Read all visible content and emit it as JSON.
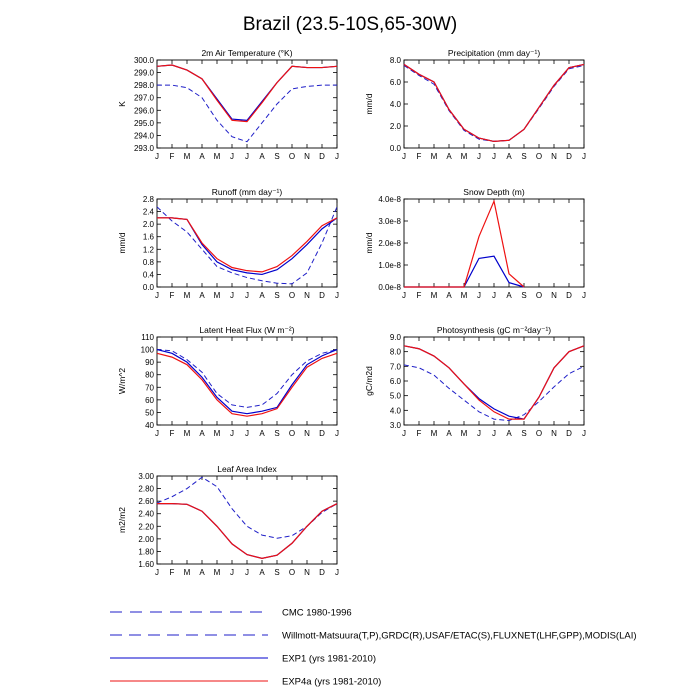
{
  "title": "Brazil (23.5-10S,65-30W)",
  "months": [
    "J",
    "F",
    "M",
    "A",
    "M",
    "J",
    "J",
    "A",
    "S",
    "O",
    "N",
    "D",
    "J"
  ],
  "colors": {
    "cmc": "#1f1fc8",
    "obs": "#1f1fc8",
    "exp1": "#0000cc",
    "exp4a": "#ee1111"
  },
  "legend": [
    {
      "key": "cmc",
      "label": "CMC 1980-1996",
      "style": "dash-long"
    },
    {
      "key": "obs",
      "label": "Willmott-Matsuura(T,P),GRDC(R),USAF/ETAC(S),FLUXNET(LHF,GPP),MODIS(LAI)",
      "style": "dash"
    },
    {
      "key": "exp1",
      "label": "EXP1 (yrs 1981-2010)",
      "style": "solid"
    },
    {
      "key": "exp4a",
      "label": "EXP4a (yrs 1981-2010)",
      "style": "solid"
    }
  ],
  "chart_data": [
    {
      "type": "line",
      "id": "air-temp",
      "title": "2m Air Temperature (°K)",
      "ylabel": "K",
      "ylim": [
        293,
        300
      ],
      "yticks": [
        "293.0",
        "294.0",
        "295.0",
        "296.0",
        "297.0",
        "298.0",
        "299.0",
        "300.0"
      ],
      "series": [
        {
          "name": "Willmott-Matsuura",
          "key": "obs",
          "values": [
            298.0,
            298.0,
            297.8,
            297.0,
            295.2,
            293.9,
            293.5,
            295.0,
            296.5,
            297.7,
            297.9,
            298.0,
            298.0
          ]
        },
        {
          "name": "EXP1",
          "key": "exp1",
          "values": [
            299.5,
            299.6,
            299.2,
            298.5,
            296.9,
            295.3,
            295.2,
            296.7,
            298.2,
            299.5,
            299.4,
            299.4,
            299.5
          ]
        },
        {
          "name": "EXP4a",
          "key": "exp4a",
          "values": [
            299.5,
            299.6,
            299.2,
            298.5,
            296.8,
            295.2,
            295.1,
            296.6,
            298.2,
            299.5,
            299.4,
            299.4,
            299.5
          ]
        }
      ]
    },
    {
      "type": "line",
      "id": "precipitation",
      "title": "Precipitation (mm day⁻¹)",
      "ylabel": "mm/d",
      "ylim": [
        0,
        8
      ],
      "yticks": [
        "0.0",
        "2.0",
        "4.0",
        "6.0",
        "8.0"
      ],
      "series": [
        {
          "name": "Willmott-Matsuura",
          "key": "obs",
          "values": [
            7.5,
            6.6,
            5.8,
            3.4,
            1.6,
            0.8,
            0.6,
            0.7,
            1.7,
            3.6,
            5.6,
            7.2,
            7.5
          ]
        },
        {
          "name": "EXP1",
          "key": "exp1",
          "values": [
            7.6,
            6.7,
            6.0,
            3.5,
            1.7,
            0.9,
            0.6,
            0.7,
            1.7,
            3.7,
            5.7,
            7.3,
            7.6
          ]
        },
        {
          "name": "EXP4a",
          "key": "exp4a",
          "values": [
            7.6,
            6.7,
            6.0,
            3.5,
            1.7,
            0.9,
            0.6,
            0.7,
            1.7,
            3.7,
            5.7,
            7.3,
            7.6
          ]
        }
      ]
    },
    {
      "type": "line",
      "id": "runoff",
      "title": "Runoff (mm day⁻¹)",
      "ylabel": "mm/d",
      "ylim": [
        0,
        2.8
      ],
      "yticks": [
        "0.0",
        "0.4",
        "0.8",
        "1.2",
        "1.6",
        "2.0",
        "2.4",
        "2.8"
      ],
      "series": [
        {
          "name": "GRDC",
          "key": "obs",
          "values": [
            2.55,
            2.1,
            1.75,
            1.2,
            0.65,
            0.45,
            0.3,
            0.2,
            0.12,
            0.1,
            0.45,
            1.4,
            2.55
          ]
        },
        {
          "name": "EXP1",
          "key": "exp1",
          "values": [
            2.2,
            2.2,
            2.15,
            1.35,
            0.8,
            0.55,
            0.45,
            0.4,
            0.55,
            0.9,
            1.35,
            1.85,
            2.2
          ]
        },
        {
          "name": "EXP4a",
          "key": "exp4a",
          "values": [
            2.2,
            2.2,
            2.15,
            1.4,
            0.9,
            0.62,
            0.52,
            0.48,
            0.65,
            1.0,
            1.45,
            1.95,
            2.2
          ]
        }
      ]
    },
    {
      "type": "line",
      "id": "snow-depth",
      "title": "Snow Depth (m)",
      "ylabel": "mm/d",
      "ylim": [
        0,
        4e-08
      ],
      "yticks": [
        "0.0e-8",
        "1.0e-8",
        "2.0e-8",
        "3.0e-8",
        "4.0e-8"
      ],
      "series": [
        {
          "name": "EXP1",
          "key": "exp1",
          "values": [
            0,
            0,
            0,
            0,
            0,
            1.3e-08,
            1.4e-08,
            2e-09,
            0,
            null,
            null,
            null,
            null
          ]
        },
        {
          "name": "EXP4a",
          "key": "exp4a",
          "values": [
            0,
            0,
            0,
            0,
            0,
            2.3e-08,
            3.9e-08,
            6e-09,
            0,
            null,
            null,
            null,
            null
          ]
        }
      ]
    },
    {
      "type": "line",
      "id": "latent-heat",
      "title": "Latent Heat Flux (W m⁻²)",
      "ylabel": "W/m^2",
      "ylim": [
        40,
        110
      ],
      "yticks": [
        "40",
        "50",
        "60",
        "70",
        "80",
        "90",
        "100",
        "110"
      ],
      "series": [
        {
          "name": "FLUXNET",
          "key": "obs",
          "values": [
            100,
            99,
            92,
            82,
            65,
            56,
            54,
            56,
            65,
            80,
            91,
            97,
            100
          ]
        },
        {
          "name": "EXP1",
          "key": "exp1",
          "values": [
            100,
            97,
            90,
            78,
            62,
            51,
            49,
            51,
            54,
            72,
            88,
            95,
            100
          ]
        },
        {
          "name": "EXP4a",
          "key": "exp4a",
          "values": [
            97,
            94,
            88,
            76,
            60,
            49,
            47,
            49,
            53,
            70,
            86,
            93,
            97
          ]
        }
      ]
    },
    {
      "type": "line",
      "id": "photosynthesis",
      "title": "Photosynthesis (gC m⁻²day⁻¹)",
      "ylabel": "gC/m2d",
      "ylim": [
        3,
        9
      ],
      "yticks": [
        "3.0",
        "4.0",
        "5.0",
        "6.0",
        "7.0",
        "8.0",
        "9.0"
      ],
      "series": [
        {
          "name": "FLUXNET",
          "key": "obs",
          "values": [
            7.1,
            6.9,
            6.4,
            5.5,
            4.7,
            3.9,
            3.4,
            3.3,
            3.7,
            4.6,
            5.6,
            6.5,
            7.0
          ]
        },
        {
          "name": "EXP1",
          "key": "exp1",
          "values": [
            8.4,
            8.2,
            7.7,
            6.9,
            5.8,
            4.8,
            4.1,
            3.6,
            3.4,
            4.9,
            6.9,
            8.0,
            8.4
          ]
        },
        {
          "name": "EXP4a",
          "key": "exp4a",
          "values": [
            8.4,
            8.2,
            7.7,
            6.9,
            5.8,
            4.7,
            3.9,
            3.4,
            3.4,
            4.9,
            6.9,
            8.0,
            8.4
          ]
        }
      ]
    },
    {
      "type": "line",
      "id": "lai",
      "title": "Leaf Area Index",
      "ylabel": "m2/m2",
      "ylim": [
        1.6,
        3.0
      ],
      "yticks": [
        "1.60",
        "1.80",
        "2.00",
        "2.20",
        "2.40",
        "2.60",
        "2.80",
        "3.00"
      ],
      "series": [
        {
          "name": "MODIS",
          "key": "obs",
          "values": [
            2.57,
            2.67,
            2.8,
            2.98,
            2.83,
            2.48,
            2.2,
            2.06,
            2.01,
            2.05,
            2.2,
            2.42,
            2.56
          ]
        },
        {
          "name": "EXP1",
          "key": "exp1",
          "values": [
            2.56,
            2.56,
            2.55,
            2.44,
            2.2,
            1.92,
            1.75,
            1.69,
            1.74,
            1.93,
            2.2,
            2.44,
            2.56
          ]
        },
        {
          "name": "EXP4a",
          "key": "exp4a",
          "values": [
            2.56,
            2.56,
            2.55,
            2.44,
            2.2,
            1.92,
            1.75,
            1.69,
            1.74,
            1.93,
            2.2,
            2.44,
            2.56
          ]
        }
      ]
    }
  ]
}
